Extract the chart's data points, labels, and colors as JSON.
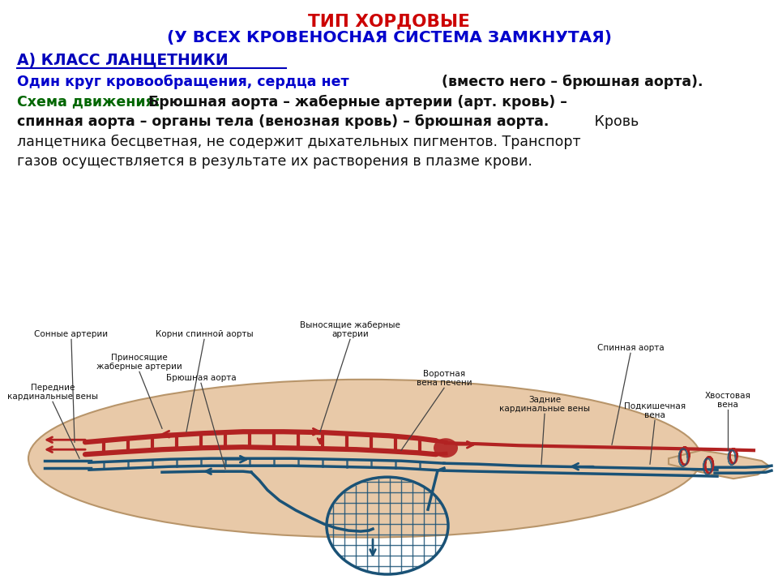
{
  "title_line1": "ТИП ХОРДОВЫЕ",
  "title_line2": "(У ВСЕХ КРОВЕНОСНАЯ СИСТЕМА ЗАМКНУТАЯ)",
  "subtitle": "А) КЛАСС ЛАНЦЕТНИКИ",
  "body_line1_bold": "Один круг кровообращения, сердца нет ",
  "body_line1_normal": "(вместо него – брюшная аорта).",
  "body_line2_green": "Схема движения:",
  "body_line2_black": " Брюшная аорта – жаберные артерии (арт. кровь) –",
  "body_line3_bold": "спинная аорта – органы тела (венозная кровь) – брюшная аорта.",
  "body_line3_tail": " Кровь",
  "body_line4": "ланцетника бесцветная, не содержит дыхательных пигментов. Транспорт",
  "body_line5": "газов осуществляется в результате их растворения в плазме крови.",
  "bg_color": "#ffffff",
  "title_color": "#cc0000",
  "title2_color": "#0000cc",
  "subtitle_color": "#0000bb",
  "blue_bold_color": "#0000cc",
  "green_color": "#006600",
  "black_color": "#111111",
  "artery_color": "#b22222",
  "vein_color": "#1a5276",
  "body_fill": "#e8c9a8",
  "body_edge": "#b8956a"
}
